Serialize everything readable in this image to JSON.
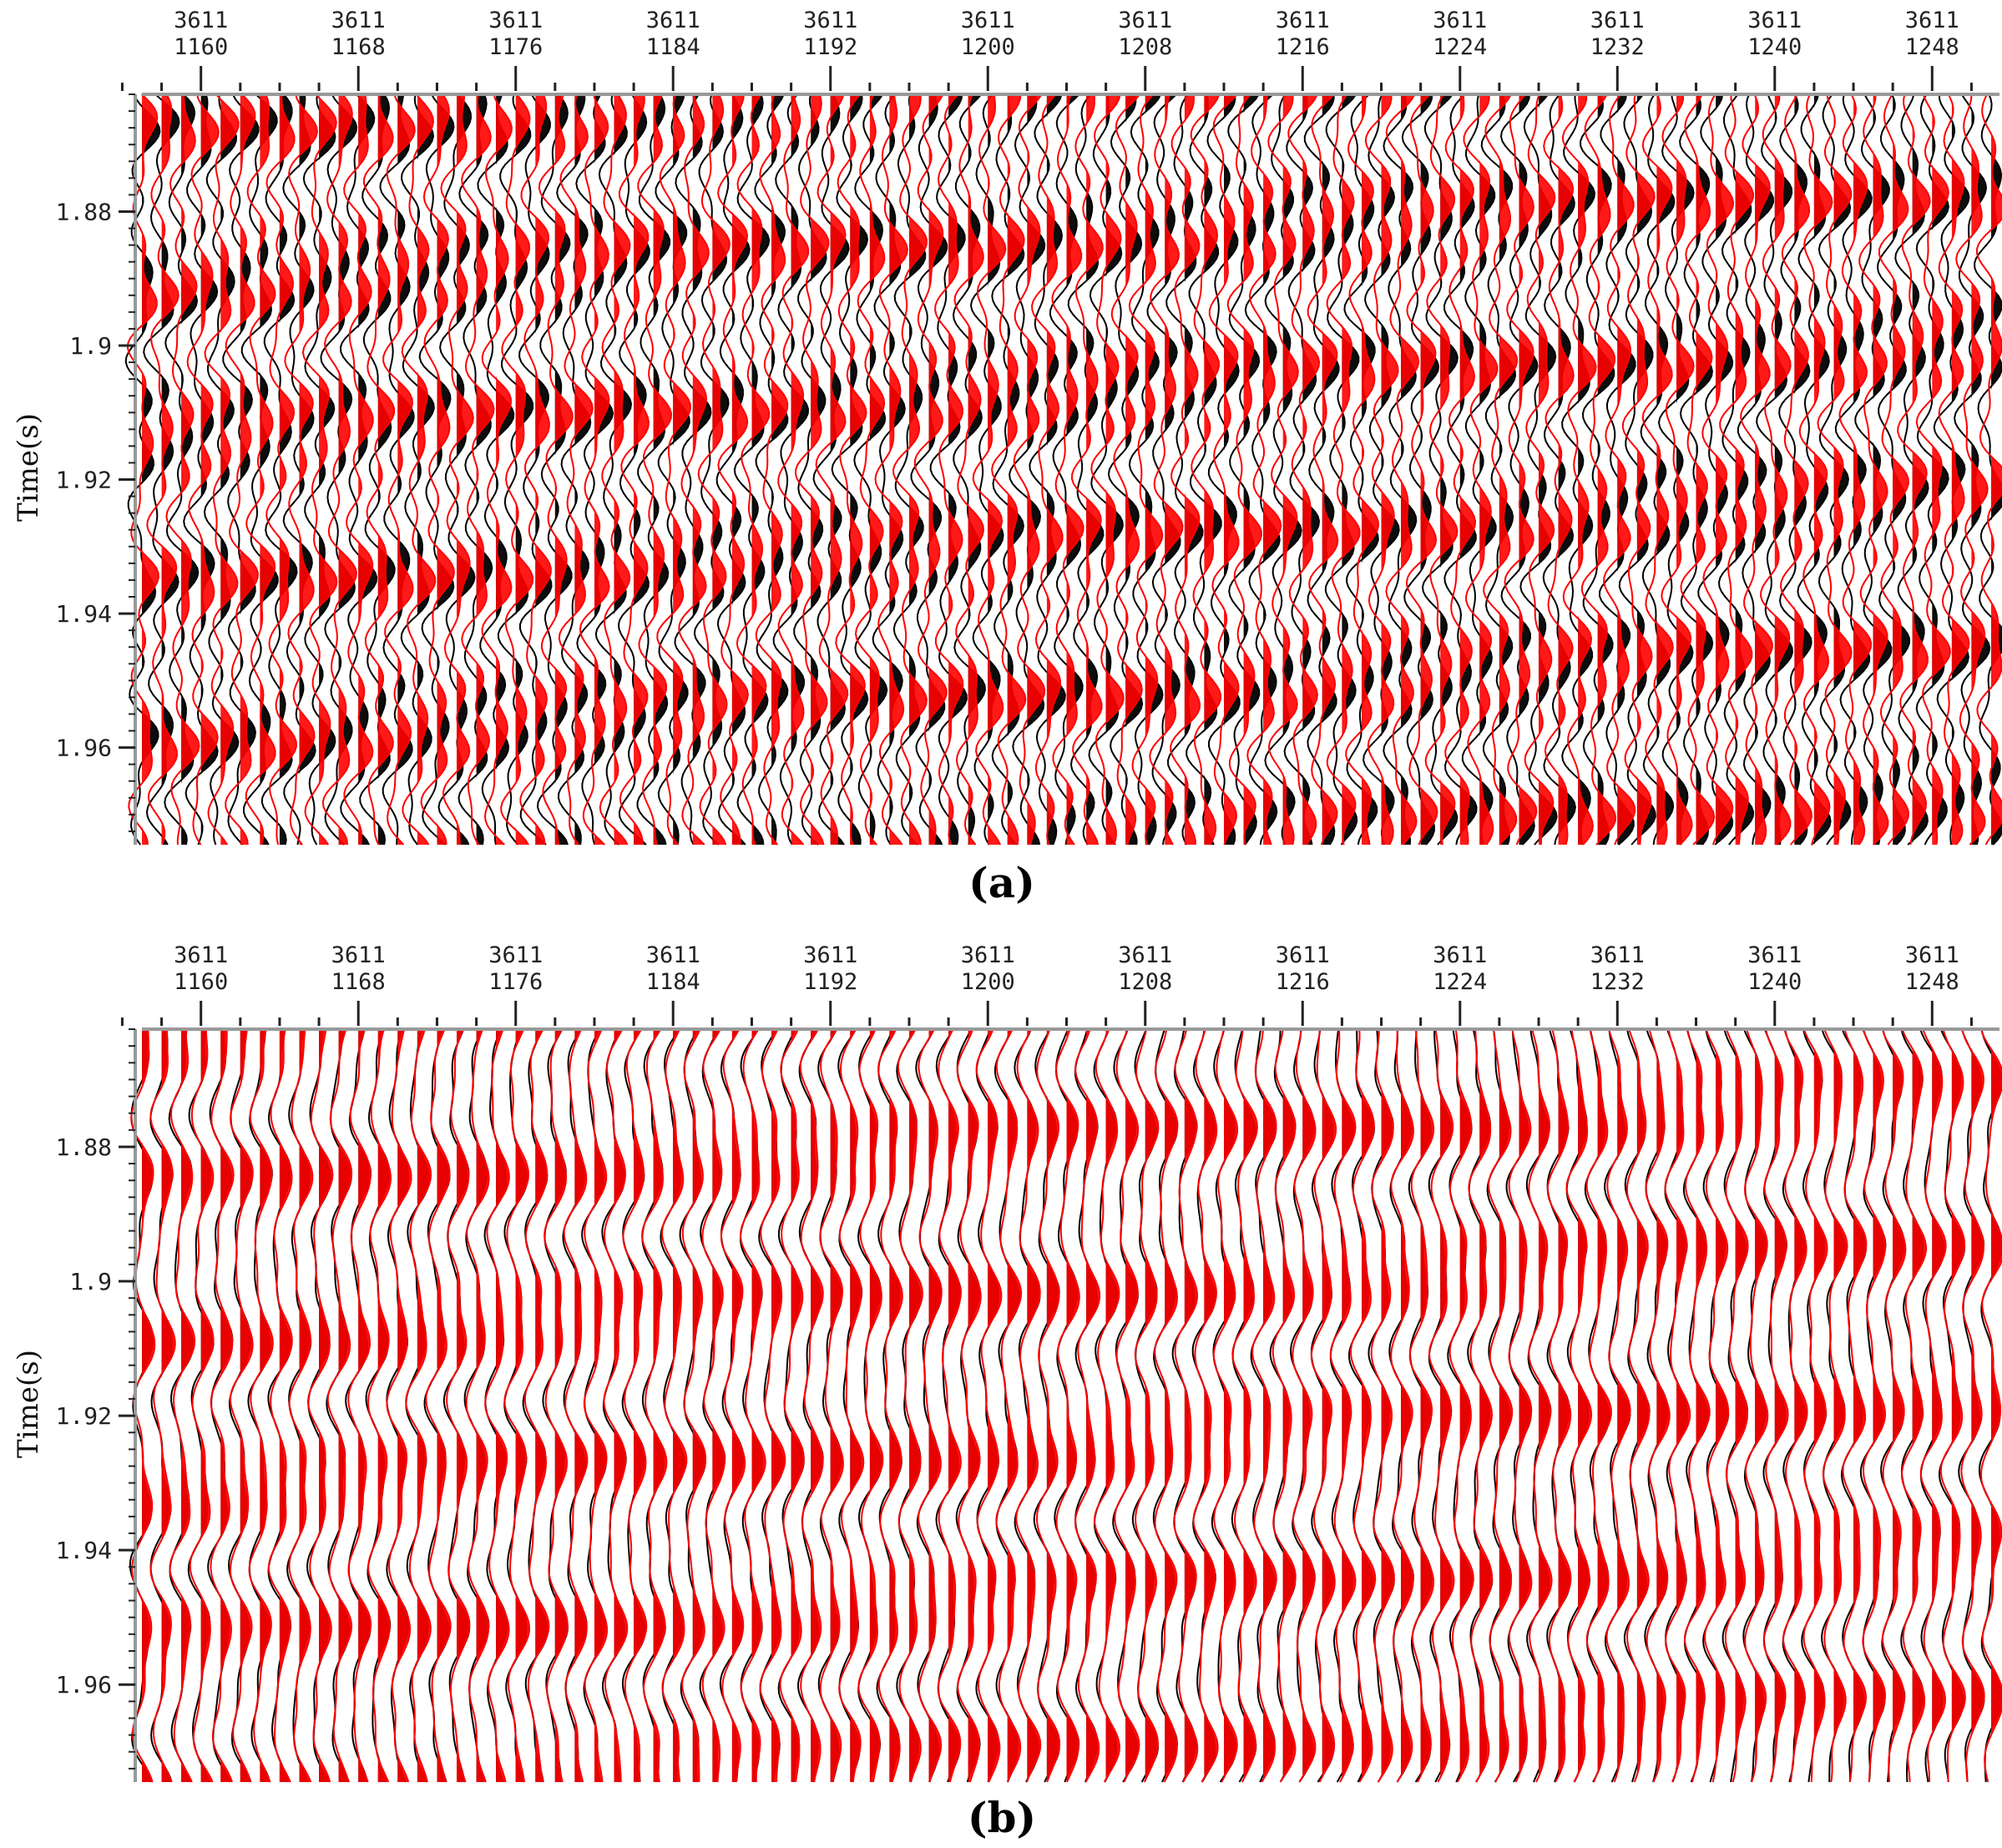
{
  "colors": {
    "primary_wiggle": "#000000",
    "overlay_wiggle": "#ff0000",
    "frame": "#999999",
    "background": "#ffffff"
  },
  "chart_data": [
    {
      "type": "line",
      "panel_label": "(a)",
      "ylabel": "Time(s)",
      "x_top_row": [
        "3611",
        "3611",
        "3611",
        "3611",
        "3611",
        "3611",
        "3611",
        "3611",
        "3611",
        "3611",
        "3611",
        "3611"
      ],
      "x_bottom_row": [
        "1160",
        "1168",
        "1176",
        "1184",
        "1192",
        "1200",
        "1208",
        "1216",
        "1224",
        "1232",
        "1240",
        "1248"
      ],
      "trace_range": [
        1157,
        1251
      ],
      "yticks": [
        "1.88",
        "1.9",
        "1.92",
        "1.94",
        "1.96"
      ],
      "ylim": [
        1.8625,
        1.9745
      ],
      "y_reversed": true,
      "series": [
        {
          "role": "black-filled wiggle traces",
          "color": "#000000"
        },
        {
          "role": "red-filled wiggle traces",
          "color": "#ff0000"
        }
      ],
      "noise_level": 1.0
    },
    {
      "type": "line",
      "panel_label": "(b)",
      "ylabel": "Time(s)",
      "x_top_row": [
        "3611",
        "3611",
        "3611",
        "3611",
        "3611",
        "3611",
        "3611",
        "3611",
        "3611",
        "3611",
        "3611",
        "3611"
      ],
      "x_bottom_row": [
        "1160",
        "1168",
        "1176",
        "1184",
        "1192",
        "1200",
        "1208",
        "1216",
        "1224",
        "1232",
        "1240",
        "1248"
      ],
      "trace_range": [
        1157,
        1251
      ],
      "yticks": [
        "1.88",
        "1.9",
        "1.92",
        "1.94",
        "1.96"
      ],
      "ylim": [
        1.8625,
        1.9745
      ],
      "y_reversed": true,
      "series": [
        {
          "role": "black-filled wiggle traces",
          "color": "#000000"
        },
        {
          "role": "red-filled wiggle traces",
          "color": "#ff0000"
        }
      ],
      "noise_level": 0.15
    }
  ]
}
